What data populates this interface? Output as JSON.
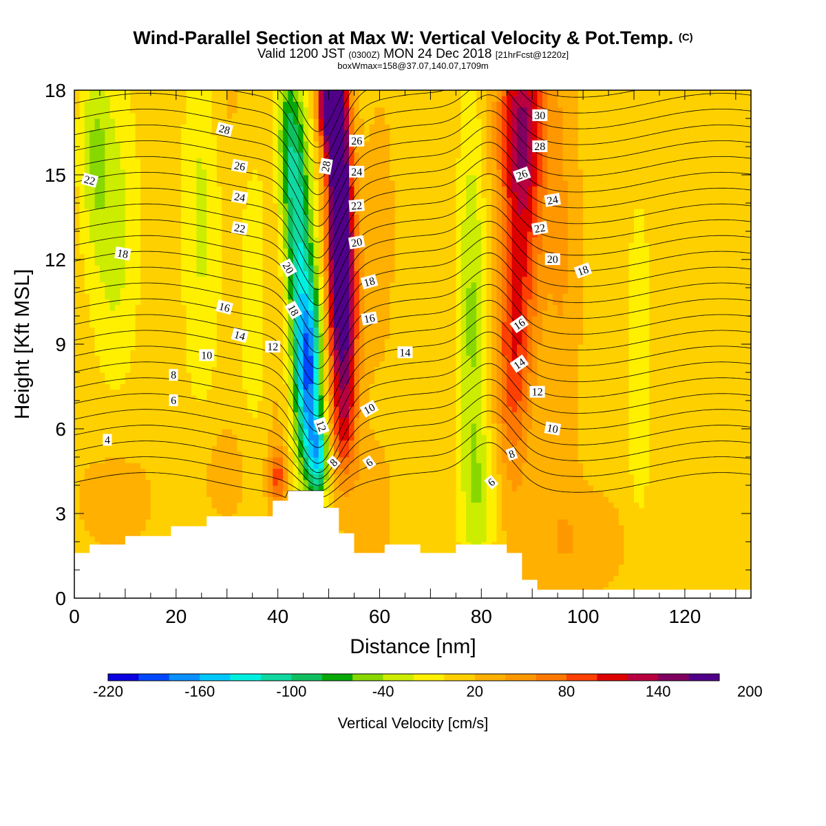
{
  "header": {
    "title_main": "Wind-Parallel Section at Max W: Vertical Velocity & Pot.Temp.",
    "title_mark": "(C)",
    "valid_prefix": "Valid 1200 JST",
    "valid_utc": "(0300Z)",
    "valid_date": "MON 24 Dec 2018",
    "valid_fcst": "[21hrFcst@1220z]",
    "box_info": "boxWmax=158@37.07,140.07,1709m"
  },
  "colors": {
    "palette": [
      "#0a00e0",
      "#0048ff",
      "#0a90ff",
      "#00c8ff",
      "#00f0e0",
      "#10d8a0",
      "#10c060",
      "#08a808",
      "#88d800",
      "#ccec00",
      "#fff000",
      "#ffd000",
      "#ffb000",
      "#ff9800",
      "#ff7800",
      "#ff4000",
      "#dd0000",
      "#b80040",
      "#800060",
      "#500088"
    ],
    "terrain": "#ffffff",
    "contour": "#000000"
  },
  "chart_data": {
    "type": "heatmap",
    "xlabel": "Distance [nm]",
    "ylabel": "Height [Kft MSL]",
    "xlim": [
      0,
      133
    ],
    "ylim": [
      0,
      18
    ],
    "xticks": [
      "0",
      "20",
      "40",
      "60",
      "80",
      "100",
      "120"
    ],
    "yticks": [
      "0",
      "3",
      "6",
      "9",
      "12",
      "15",
      "18"
    ],
    "colorbar": {
      "label": "Vertical Velocity [cm/s]",
      "levels": [
        -220,
        -200,
        -180,
        -160,
        -140,
        -120,
        -100,
        -80,
        -60,
        -40,
        -20,
        0,
        20,
        40,
        60,
        80,
        100,
        120,
        140,
        160,
        180,
        200,
        220
      ],
      "tick_labels": [
        "-220",
        "-160",
        "-100",
        "-40",
        "20",
        "80",
        "140",
        "200"
      ],
      "tick_values": [
        -220,
        -160,
        -100,
        -40,
        20,
        80,
        140,
        200
      ]
    },
    "w_features": [
      {
        "x": 46,
        "z": 8,
        "w": -190,
        "sx": 1.8,
        "sz": 2.4
      },
      {
        "x": 44,
        "z": 13,
        "w": -110,
        "sx": 1.8,
        "sz": 3.0
      },
      {
        "x": 42,
        "z": 16.5,
        "w": -70,
        "sx": 1.6,
        "sz": 2.2
      },
      {
        "x": 48,
        "z": 5,
        "w": -120,
        "sx": 1.4,
        "sz": 1.0
      },
      {
        "x": 52,
        "z": 15,
        "w": 200,
        "sx": 1.6,
        "sz": 3.2
      },
      {
        "x": 53,
        "z": 10,
        "w": 140,
        "sx": 2.0,
        "sz": 2.8
      },
      {
        "x": 53,
        "z": 6,
        "w": 50,
        "sx": 1.8,
        "sz": 1.4
      },
      {
        "x": 50,
        "z": 17.8,
        "w": 210,
        "sx": 1.4,
        "sz": 1.2
      },
      {
        "x": 40,
        "z": 4.3,
        "w": 70,
        "sx": 1.2,
        "sz": 0.7
      },
      {
        "x": 39,
        "z": 9,
        "w": 20,
        "sx": 2.0,
        "sz": 5.0
      },
      {
        "x": 36,
        "z": 10,
        "w": -25,
        "sx": 2.5,
        "sz": 5.0
      },
      {
        "x": 72,
        "z": 10,
        "w": 10,
        "sx": 3.0,
        "sz": 6.0
      },
      {
        "x": 78,
        "z": 10,
        "w": -55,
        "sx": 2.0,
        "sz": 5.0
      },
      {
        "x": 80,
        "z": 3.5,
        "w": -35,
        "sx": 2.5,
        "sz": 2.0
      },
      {
        "x": 88,
        "z": 14,
        "w": 85,
        "sx": 3.0,
        "sz": 4.0
      },
      {
        "x": 86,
        "z": 8,
        "w": 65,
        "sx": 2.5,
        "sz": 3.0
      },
      {
        "x": 88,
        "z": 17,
        "w": 75,
        "sx": 3.5,
        "sz": 2.0
      },
      {
        "x": 96,
        "z": 12,
        "w": 30,
        "sx": 2.5,
        "sz": 6.0
      },
      {
        "x": 111,
        "z": 8,
        "w": -30,
        "sx": 1.6,
        "sz": 4.0
      },
      {
        "x": 8,
        "z": 13,
        "w": -40,
        "sx": 3.0,
        "sz": 3.5
      },
      {
        "x": 4,
        "z": 16,
        "w": -45,
        "sx": 2.0,
        "sz": 2.5
      },
      {
        "x": 25,
        "z": 14,
        "w": -35,
        "sx": 2.5,
        "sz": 5.0
      },
      {
        "x": 8,
        "z": 3.5,
        "w": 20,
        "sx": 6.0,
        "sz": 1.5
      },
      {
        "x": 30,
        "z": 4.5,
        "w": 20,
        "sx": 5.0,
        "sz": 1.5
      },
      {
        "x": 58,
        "z": 3.0,
        "w": 25,
        "sx": 3.0,
        "sz": 1.5
      },
      {
        "x": 98,
        "z": 2.0,
        "w": 25,
        "sx": 8.0,
        "sz": 1.5
      },
      {
        "x": 60,
        "z": 13,
        "w": 15,
        "sx": 3.0,
        "sz": 5.0
      },
      {
        "x": 30,
        "z": 18,
        "w": 15,
        "sx": 4.0,
        "sz": 2.0
      }
    ],
    "terrain": [
      [
        0,
        1.6
      ],
      [
        3,
        1.6
      ],
      [
        3,
        1.9
      ],
      [
        10,
        1.9
      ],
      [
        10,
        2.2
      ],
      [
        19,
        2.2
      ],
      [
        19,
        2.55
      ],
      [
        26,
        2.55
      ],
      [
        26,
        2.9
      ],
      [
        39,
        2.9
      ],
      [
        39,
        3.45
      ],
      [
        42,
        3.45
      ],
      [
        42,
        3.8
      ],
      [
        49,
        3.8
      ],
      [
        49,
        3.2
      ],
      [
        52,
        3.2
      ],
      [
        52,
        2.3
      ],
      [
        55,
        2.3
      ],
      [
        55,
        1.6
      ],
      [
        61,
        1.6
      ],
      [
        61,
        1.9
      ],
      [
        68,
        1.9
      ],
      [
        68,
        1.6
      ],
      [
        75,
        1.6
      ],
      [
        75,
        1.9
      ],
      [
        85,
        1.9
      ],
      [
        85,
        1.6
      ],
      [
        88,
        1.6
      ],
      [
        88,
        0.65
      ],
      [
        91,
        0.65
      ],
      [
        91,
        0.3
      ],
      [
        133,
        0.3
      ]
    ],
    "theta_levels": [
      4,
      6,
      8,
      10,
      12,
      14,
      16,
      18,
      20,
      22,
      24,
      26,
      28,
      30
    ],
    "contour_labels": [
      {
        "text": "4",
        "x": 6.5,
        "z": 5.6,
        "rot": 0
      },
      {
        "text": "6",
        "x": 19.5,
        "z": 7.0,
        "rot": 0
      },
      {
        "text": "8",
        "x": 19.5,
        "z": 7.9,
        "rot": 0
      },
      {
        "text": "10",
        "x": 26,
        "z": 8.6,
        "rot": 0
      },
      {
        "text": "12",
        "x": 39,
        "z": 8.9,
        "rot": 0
      },
      {
        "text": "14",
        "x": 32.5,
        "z": 9.3,
        "rot": 15
      },
      {
        "text": "16",
        "x": 29.5,
        "z": 10.3,
        "rot": 15
      },
      {
        "text": "18",
        "x": 9.5,
        "z": 12.2,
        "rot": 10
      },
      {
        "text": "20",
        "x": 42,
        "z": 11.7,
        "rot": 60
      },
      {
        "text": "18",
        "x": 43,
        "z": 10.2,
        "rot": 60
      },
      {
        "text": "12",
        "x": 48.5,
        "z": 6.1,
        "rot": 70
      },
      {
        "text": "8",
        "x": 51,
        "z": 4.8,
        "rot": -45
      },
      {
        "text": "6",
        "x": 58,
        "z": 4.8,
        "rot": -35
      },
      {
        "text": "10",
        "x": 58,
        "z": 6.7,
        "rot": -30
      },
      {
        "text": "14",
        "x": 65,
        "z": 8.7,
        "rot": 0
      },
      {
        "text": "16",
        "x": 58,
        "z": 9.9,
        "rot": -10
      },
      {
        "text": "18",
        "x": 58,
        "z": 11.2,
        "rot": -15
      },
      {
        "text": "20",
        "x": 55.5,
        "z": 12.6,
        "rot": -10
      },
      {
        "text": "22",
        "x": 55.5,
        "z": 13.9,
        "rot": -5
      },
      {
        "text": "24",
        "x": 55.5,
        "z": 15.1,
        "rot": 0
      },
      {
        "text": "26",
        "x": 55.5,
        "z": 16.2,
        "rot": 0
      },
      {
        "text": "28",
        "x": 49.5,
        "z": 15.3,
        "rot": -80
      },
      {
        "text": "22",
        "x": 32.5,
        "z": 13.1,
        "rot": 10
      },
      {
        "text": "24",
        "x": 32.5,
        "z": 14.2,
        "rot": 10
      },
      {
        "text": "26",
        "x": 32.5,
        "z": 15.3,
        "rot": 10
      },
      {
        "text": "28",
        "x": 29.5,
        "z": 16.6,
        "rot": 15
      },
      {
        "text": "22",
        "x": 3,
        "z": 14.8,
        "rot": 15
      },
      {
        "text": "6",
        "x": 82,
        "z": 4.1,
        "rot": -40
      },
      {
        "text": "8",
        "x": 86,
        "z": 5.1,
        "rot": -20
      },
      {
        "text": "10",
        "x": 94,
        "z": 6.0,
        "rot": 10
      },
      {
        "text": "12",
        "x": 91,
        "z": 7.3,
        "rot": 0
      },
      {
        "text": "14",
        "x": 87.5,
        "z": 8.3,
        "rot": -35
      },
      {
        "text": "16",
        "x": 87.5,
        "z": 9.7,
        "rot": -35
      },
      {
        "text": "18",
        "x": 100,
        "z": 11.6,
        "rot": -20
      },
      {
        "text": "20",
        "x": 94,
        "z": 12.0,
        "rot": 0
      },
      {
        "text": "22",
        "x": 91.5,
        "z": 13.1,
        "rot": -10
      },
      {
        "text": "24",
        "x": 94,
        "z": 14.1,
        "rot": -10
      },
      {
        "text": "26",
        "x": 88,
        "z": 15.0,
        "rot": -20
      },
      {
        "text": "28",
        "x": 91.5,
        "z": 16.0,
        "rot": 0
      },
      {
        "text": "30",
        "x": 91.5,
        "z": 17.1,
        "rot": 0
      }
    ]
  }
}
